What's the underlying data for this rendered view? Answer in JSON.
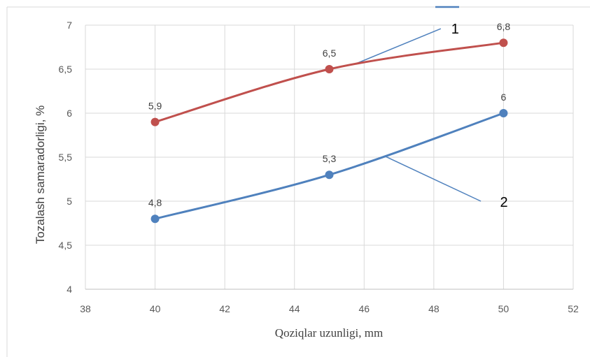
{
  "chart_data": {
    "type": "line",
    "xlabel": "Qoziqlar uzunligi,   mm",
    "ylabel": "Tozalash samaradorligi,   %",
    "xlim": [
      38,
      52
    ],
    "ylim": [
      4,
      7
    ],
    "x_ticks": [
      "38",
      "40",
      "42",
      "44",
      "46",
      "48",
      "50",
      "52"
    ],
    "y_ticks": [
      "4",
      "4,5",
      "5",
      "5,5",
      "6",
      "6,5",
      "7"
    ],
    "grid": true,
    "smooth": true,
    "series": [
      {
        "color": "#c0504d",
        "x": [
          40,
          45,
          50
        ],
        "y": [
          5.9,
          6.5,
          6.8
        ],
        "labels": [
          "5,9",
          "6,5",
          "6,8"
        ]
      },
      {
        "color": "#4f81bd",
        "x": [
          40,
          45,
          50
        ],
        "y": [
          4.8,
          5.3,
          6.0
        ],
        "labels": [
          "4,8",
          "5,3",
          "6"
        ]
      }
    ],
    "callouts": [
      {
        "text": "1",
        "series": 0
      },
      {
        "text": "2",
        "series": 1
      }
    ]
  }
}
